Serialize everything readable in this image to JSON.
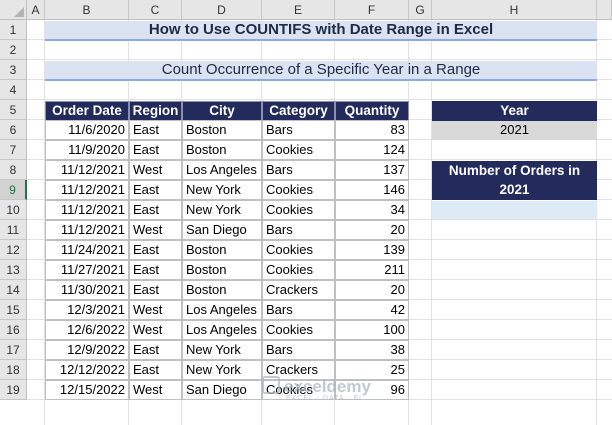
{
  "columns": [
    "A",
    "B",
    "C",
    "D",
    "E",
    "F",
    "G",
    "H"
  ],
  "rows": [
    "1",
    "2",
    "3",
    "4",
    "5",
    "6",
    "7",
    "8",
    "9",
    "10",
    "11",
    "12",
    "13",
    "14",
    "15",
    "16",
    "17",
    "18",
    "19"
  ],
  "title": "How to Use COUNTIFS with Date Range in Excel",
  "subtitle": "Count Occurrence of a Specific Year in a Range",
  "table": {
    "headers": [
      "Order Date",
      "Region",
      "City",
      "Category",
      "Quantity"
    ],
    "rows": [
      [
        "11/6/2020",
        "East",
        "Boston",
        "Bars",
        "83"
      ],
      [
        "11/9/2020",
        "East",
        "Boston",
        "Cookies",
        "124"
      ],
      [
        "11/12/2021",
        "West",
        "Los Angeles",
        "Bars",
        "137"
      ],
      [
        "11/12/2021",
        "East",
        "New York",
        "Cookies",
        "146"
      ],
      [
        "11/12/2021",
        "East",
        "New York",
        "Cookies",
        "34"
      ],
      [
        "11/12/2021",
        "West",
        "San Diego",
        "Bars",
        "20"
      ],
      [
        "11/24/2021",
        "East",
        "Boston",
        "Cookies",
        "139"
      ],
      [
        "11/27/2021",
        "East",
        "Boston",
        "Cookies",
        "211"
      ],
      [
        "11/30/2021",
        "East",
        "Boston",
        "Crackers",
        "20"
      ],
      [
        "12/3/2021",
        "West",
        "Los Angeles",
        "Bars",
        "42"
      ],
      [
        "12/6/2022",
        "West",
        "Los Angeles",
        "Cookies",
        "100"
      ],
      [
        "12/9/2022",
        "East",
        "New York",
        "Bars",
        "38"
      ],
      [
        "12/12/2022",
        "East",
        "New York",
        "Crackers",
        "25"
      ],
      [
        "12/15/2022",
        "West",
        "San Diego",
        "Cookies",
        "96"
      ]
    ]
  },
  "side": {
    "year_header": "Year",
    "year_value": "2021",
    "orders_header_line1": "Number of Orders in",
    "orders_header_line2": "2021",
    "orders_value": ""
  },
  "watermark": {
    "name": "exceldemy",
    "tagline": "EXCEL · DATA · BI"
  }
}
